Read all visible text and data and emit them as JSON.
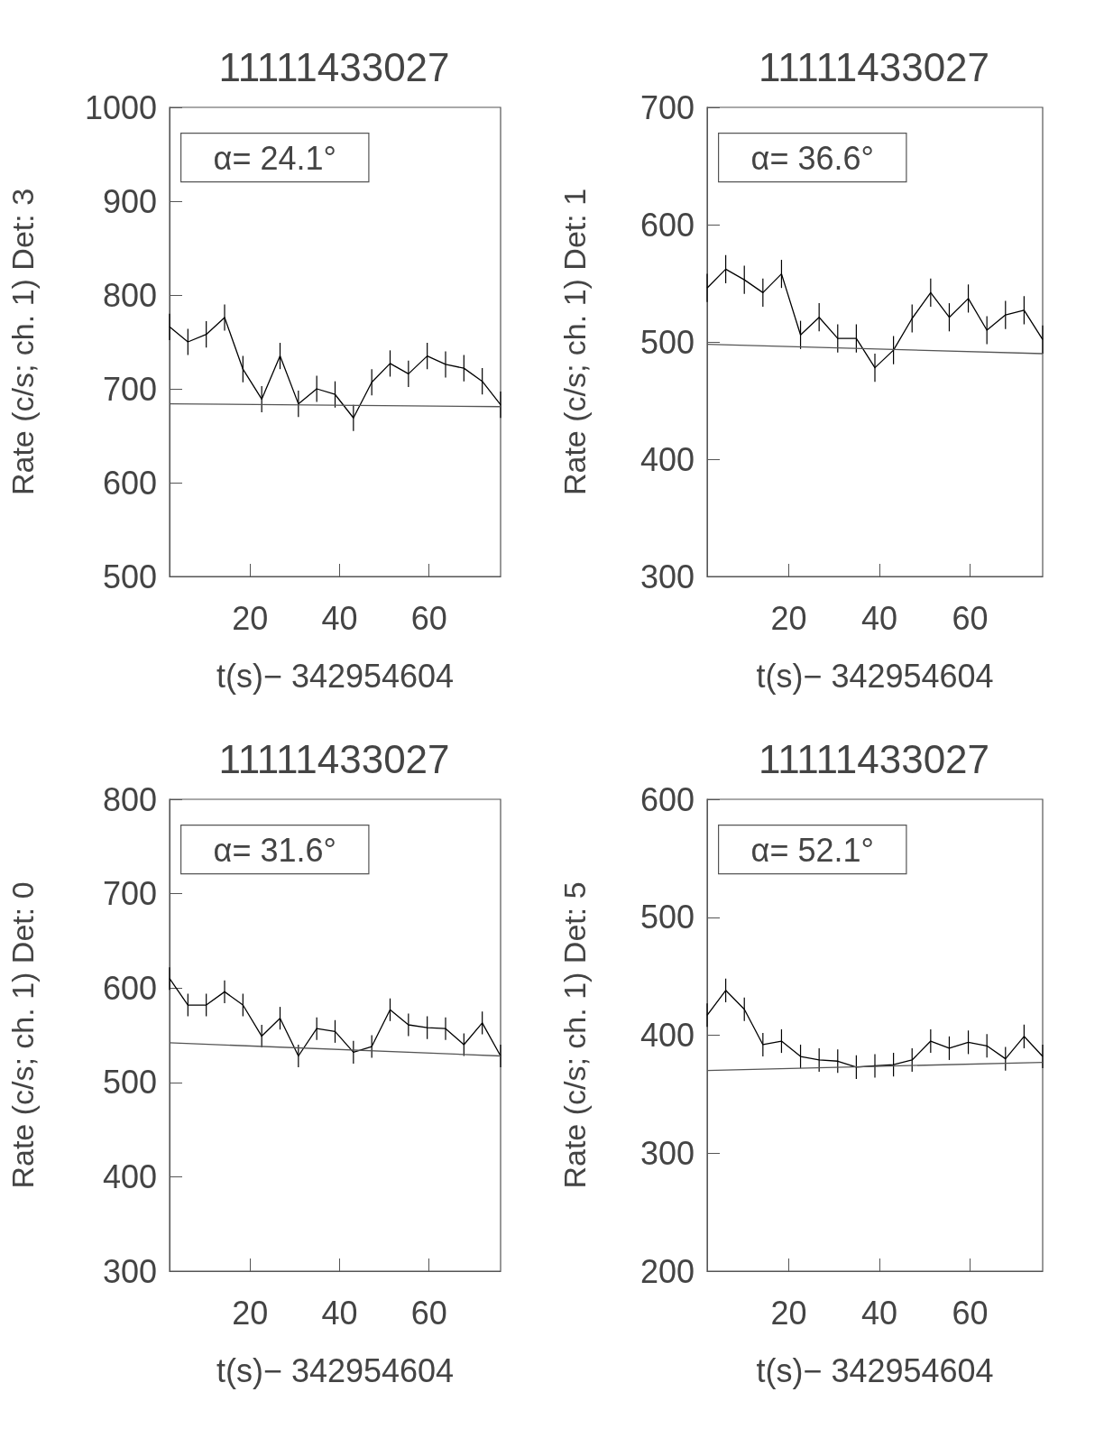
{
  "chart_data": [
    {
      "type": "line",
      "title": "11111433027",
      "xlabel": "t(s)− 342954604",
      "ylabel": "Rate (c/s; ch. 1) Det: 3",
      "annotations": [
        "α= 24.1°"
      ],
      "xlim": [
        2,
        76
      ],
      "xticks": [
        20,
        40,
        60
      ],
      "ylim": [
        500,
        1000
      ],
      "yticks": [
        500,
        600,
        700,
        800,
        900,
        1000
      ],
      "grid": false,
      "marker": "none",
      "line_style": "solid",
      "series": [
        {
          "color": "#000000",
          "x": [
            2.0,
            6.1,
            10.2,
            14.3,
            18.4,
            22.6,
            26.7,
            30.8,
            34.9,
            39.0,
            43.1,
            47.2,
            51.3,
            55.4,
            59.6,
            63.7,
            67.8,
            71.9,
            76.0
          ],
          "values": [
            766,
            750,
            758,
            776,
            721,
            689,
            735,
            684,
            700,
            694,
            669,
            707,
            727,
            716,
            735,
            726,
            722,
            708,
            683
          ],
          "errors": [
            14,
            14,
            14,
            14,
            14,
            14,
            14,
            14,
            14,
            14,
            14,
            14,
            14,
            14,
            14,
            14,
            14,
            14,
            14
          ]
        },
        {
          "color": "#555555",
          "x": [
            2,
            76
          ],
          "values": [
            684,
            681
          ]
        }
      ]
    },
    {
      "type": "line",
      "title": "11111433027",
      "xlabel": "t(s)− 342954604",
      "ylabel": "Rate (c/s; ch. 1) Det: 1",
      "annotations": [
        "α= 36.6°"
      ],
      "xlim": [
        2,
        76
      ],
      "xticks": [
        20,
        40,
        60
      ],
      "ylim": [
        300,
        700
      ],
      "yticks": [
        300,
        400,
        500,
        600,
        700
      ],
      "grid": false,
      "marker": "none",
      "line_style": "solid",
      "series": [
        {
          "color": "#000000",
          "x": [
            2.0,
            6.1,
            10.2,
            14.3,
            18.4,
            22.6,
            26.7,
            30.8,
            34.9,
            39.0,
            43.1,
            47.2,
            51.3,
            55.4,
            59.6,
            63.7,
            67.8,
            71.9,
            76.0
          ],
          "values": [
            546,
            562,
            553,
            542,
            558,
            506,
            521,
            503,
            503,
            478,
            493,
            520,
            542,
            521,
            537,
            510,
            523,
            527,
            502
          ],
          "errors": [
            12,
            12,
            12,
            12,
            12,
            12,
            12,
            12,
            12,
            12,
            12,
            12,
            12,
            12,
            12,
            12,
            12,
            12,
            12
          ]
        },
        {
          "color": "#555555",
          "x": [
            2,
            76
          ],
          "values": [
            498,
            490
          ]
        }
      ]
    },
    {
      "type": "line",
      "title": "11111433027",
      "xlabel": "t(s)− 342954604",
      "ylabel": "Rate (c/s; ch. 1) Det: 0",
      "annotations": [
        "α= 31.6°"
      ],
      "xlim": [
        2,
        76
      ],
      "xticks": [
        20,
        40,
        60
      ],
      "ylim": [
        300,
        800
      ],
      "yticks": [
        300,
        400,
        500,
        600,
        700,
        800
      ],
      "grid": false,
      "marker": "none",
      "line_style": "solid",
      "series": [
        {
          "color": "#000000",
          "x": [
            2.0,
            6.1,
            10.2,
            14.3,
            18.4,
            22.6,
            26.7,
            30.8,
            34.9,
            39.0,
            43.1,
            47.2,
            51.3,
            55.4,
            59.6,
            63.7,
            67.8,
            71.9,
            76.0
          ],
          "values": [
            610,
            582,
            582,
            596,
            582,
            549,
            568,
            528,
            557,
            554,
            532,
            538,
            577,
            561,
            558,
            557,
            540,
            563,
            528
          ],
          "errors": [
            12,
            12,
            12,
            12,
            12,
            12,
            12,
            12,
            12,
            12,
            12,
            12,
            12,
            12,
            12,
            12,
            12,
            12,
            12
          ]
        },
        {
          "color": "#555555",
          "x": [
            2,
            76
          ],
          "values": [
            542,
            528
          ]
        }
      ]
    },
    {
      "type": "line",
      "title": "11111433027",
      "xlabel": "t(s)− 342954604",
      "ylabel": "Rate (c/s; ch. 1) Det: 5",
      "annotations": [
        "α= 52.1°"
      ],
      "xlim": [
        2,
        76
      ],
      "xticks": [
        20,
        40,
        60
      ],
      "ylim": [
        200,
        600
      ],
      "yticks": [
        200,
        300,
        400,
        500,
        600
      ],
      "grid": false,
      "marker": "none",
      "line_style": "solid",
      "series": [
        {
          "color": "#000000",
          "x": [
            2.0,
            6.1,
            10.2,
            14.3,
            18.4,
            22.6,
            26.7,
            30.8,
            34.9,
            39.0,
            43.1,
            47.2,
            51.3,
            55.4,
            59.6,
            63.7,
            67.8,
            71.9,
            76.0
          ],
          "values": [
            417,
            438,
            422,
            392,
            395,
            382,
            379,
            378,
            373,
            374,
            375,
            379,
            395,
            389,
            394,
            391,
            380,
            399,
            382
          ],
          "errors": [
            10,
            10,
            10,
            10,
            10,
            10,
            10,
            10,
            10,
            10,
            10,
            10,
            10,
            10,
            10,
            10,
            10,
            10,
            10
          ]
        },
        {
          "color": "#555555",
          "x": [
            2,
            76
          ],
          "values": [
            370,
            377
          ]
        }
      ]
    }
  ]
}
